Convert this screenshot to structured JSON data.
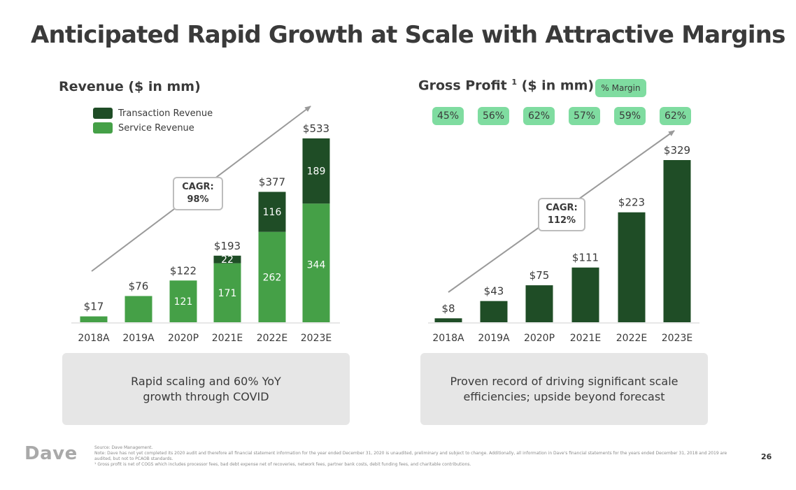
{
  "title": "Anticipated Rapid Growth at Scale with Attractive Margins",
  "colors": {
    "transaction": "#1f4d26",
    "service": "#45a047",
    "gross_profit": "#1f4d26",
    "pill": "#7fdca0",
    "callout_bg": "#e6e6e6"
  },
  "revenue_chart": {
    "title": "Revenue ($ in mm)",
    "legend": [
      "Transaction Revenue",
      "Service Revenue"
    ],
    "cagr": "CAGR:\n98%",
    "callout": "Rapid scaling and 60% YoY\ngrowth through COVID"
  },
  "gross_profit_chart": {
    "title_main": "Gross Profit ",
    "title_sup": "1",
    "title_rest": " ($ in mm)",
    "margin_header": "% Margin",
    "margins": [
      "45%",
      "56%",
      "62%",
      "57%",
      "59%",
      "62%"
    ],
    "cagr": "CAGR:\n112%",
    "callout": "Proven record of driving significant scale\nefficiencies; upside beyond forecast"
  },
  "chart_data": [
    {
      "type": "bar",
      "stacked": true,
      "title": "Revenue ($ in mm)",
      "categories": [
        "2018A",
        "2019A",
        "2020P",
        "2021E",
        "2022E",
        "2023E"
      ],
      "series": [
        {
          "name": "Service Revenue",
          "values": [
            17,
            76,
            121,
            171,
            262,
            344
          ],
          "labels": [
            "",
            "",
            "121",
            "171",
            "262",
            "344"
          ]
        },
        {
          "name": "Transaction Revenue",
          "values": [
            0,
            0,
            0,
            22,
            116,
            189
          ],
          "labels": [
            "",
            "",
            "",
            "22",
            "116",
            "189"
          ]
        }
      ],
      "totals": [
        17,
        76,
        122,
        193,
        377,
        533
      ],
      "total_labels": [
        "$17",
        "$76",
        "$122",
        "$193",
        "$377",
        "$533"
      ],
      "ylim": [
        0,
        533
      ]
    },
    {
      "type": "bar",
      "title": "Gross Profit 1 ($ in mm)",
      "categories": [
        "2018A",
        "2019A",
        "2020P",
        "2021E",
        "2022E",
        "2023E"
      ],
      "values": [
        8,
        43,
        75,
        111,
        223,
        329
      ],
      "value_labels": [
        "$8",
        "$43",
        "$75",
        "$111",
        "$223",
        "$329"
      ],
      "ylim": [
        0,
        329
      ]
    }
  ],
  "footer": {
    "logo": "Dave",
    "source": "Source: Dave Management.",
    "note": "Note: Dave has not yet completed its 2020 audit and therefore all financial statement information for the year ended December 31, 2020 is unaudited, preliminary and subject to change. Additionally, all information in Dave's financial statements for the years ended December 31, 2018 and 2019 are audited, but not to PCAOB standards.",
    "footnote": "¹ Gross profit is net of COGS which includes processor fees, bad debt expense net of recoveries, network fees, partner bank costs, debit funding fees, and charitable contributions.",
    "page_number": "26"
  }
}
